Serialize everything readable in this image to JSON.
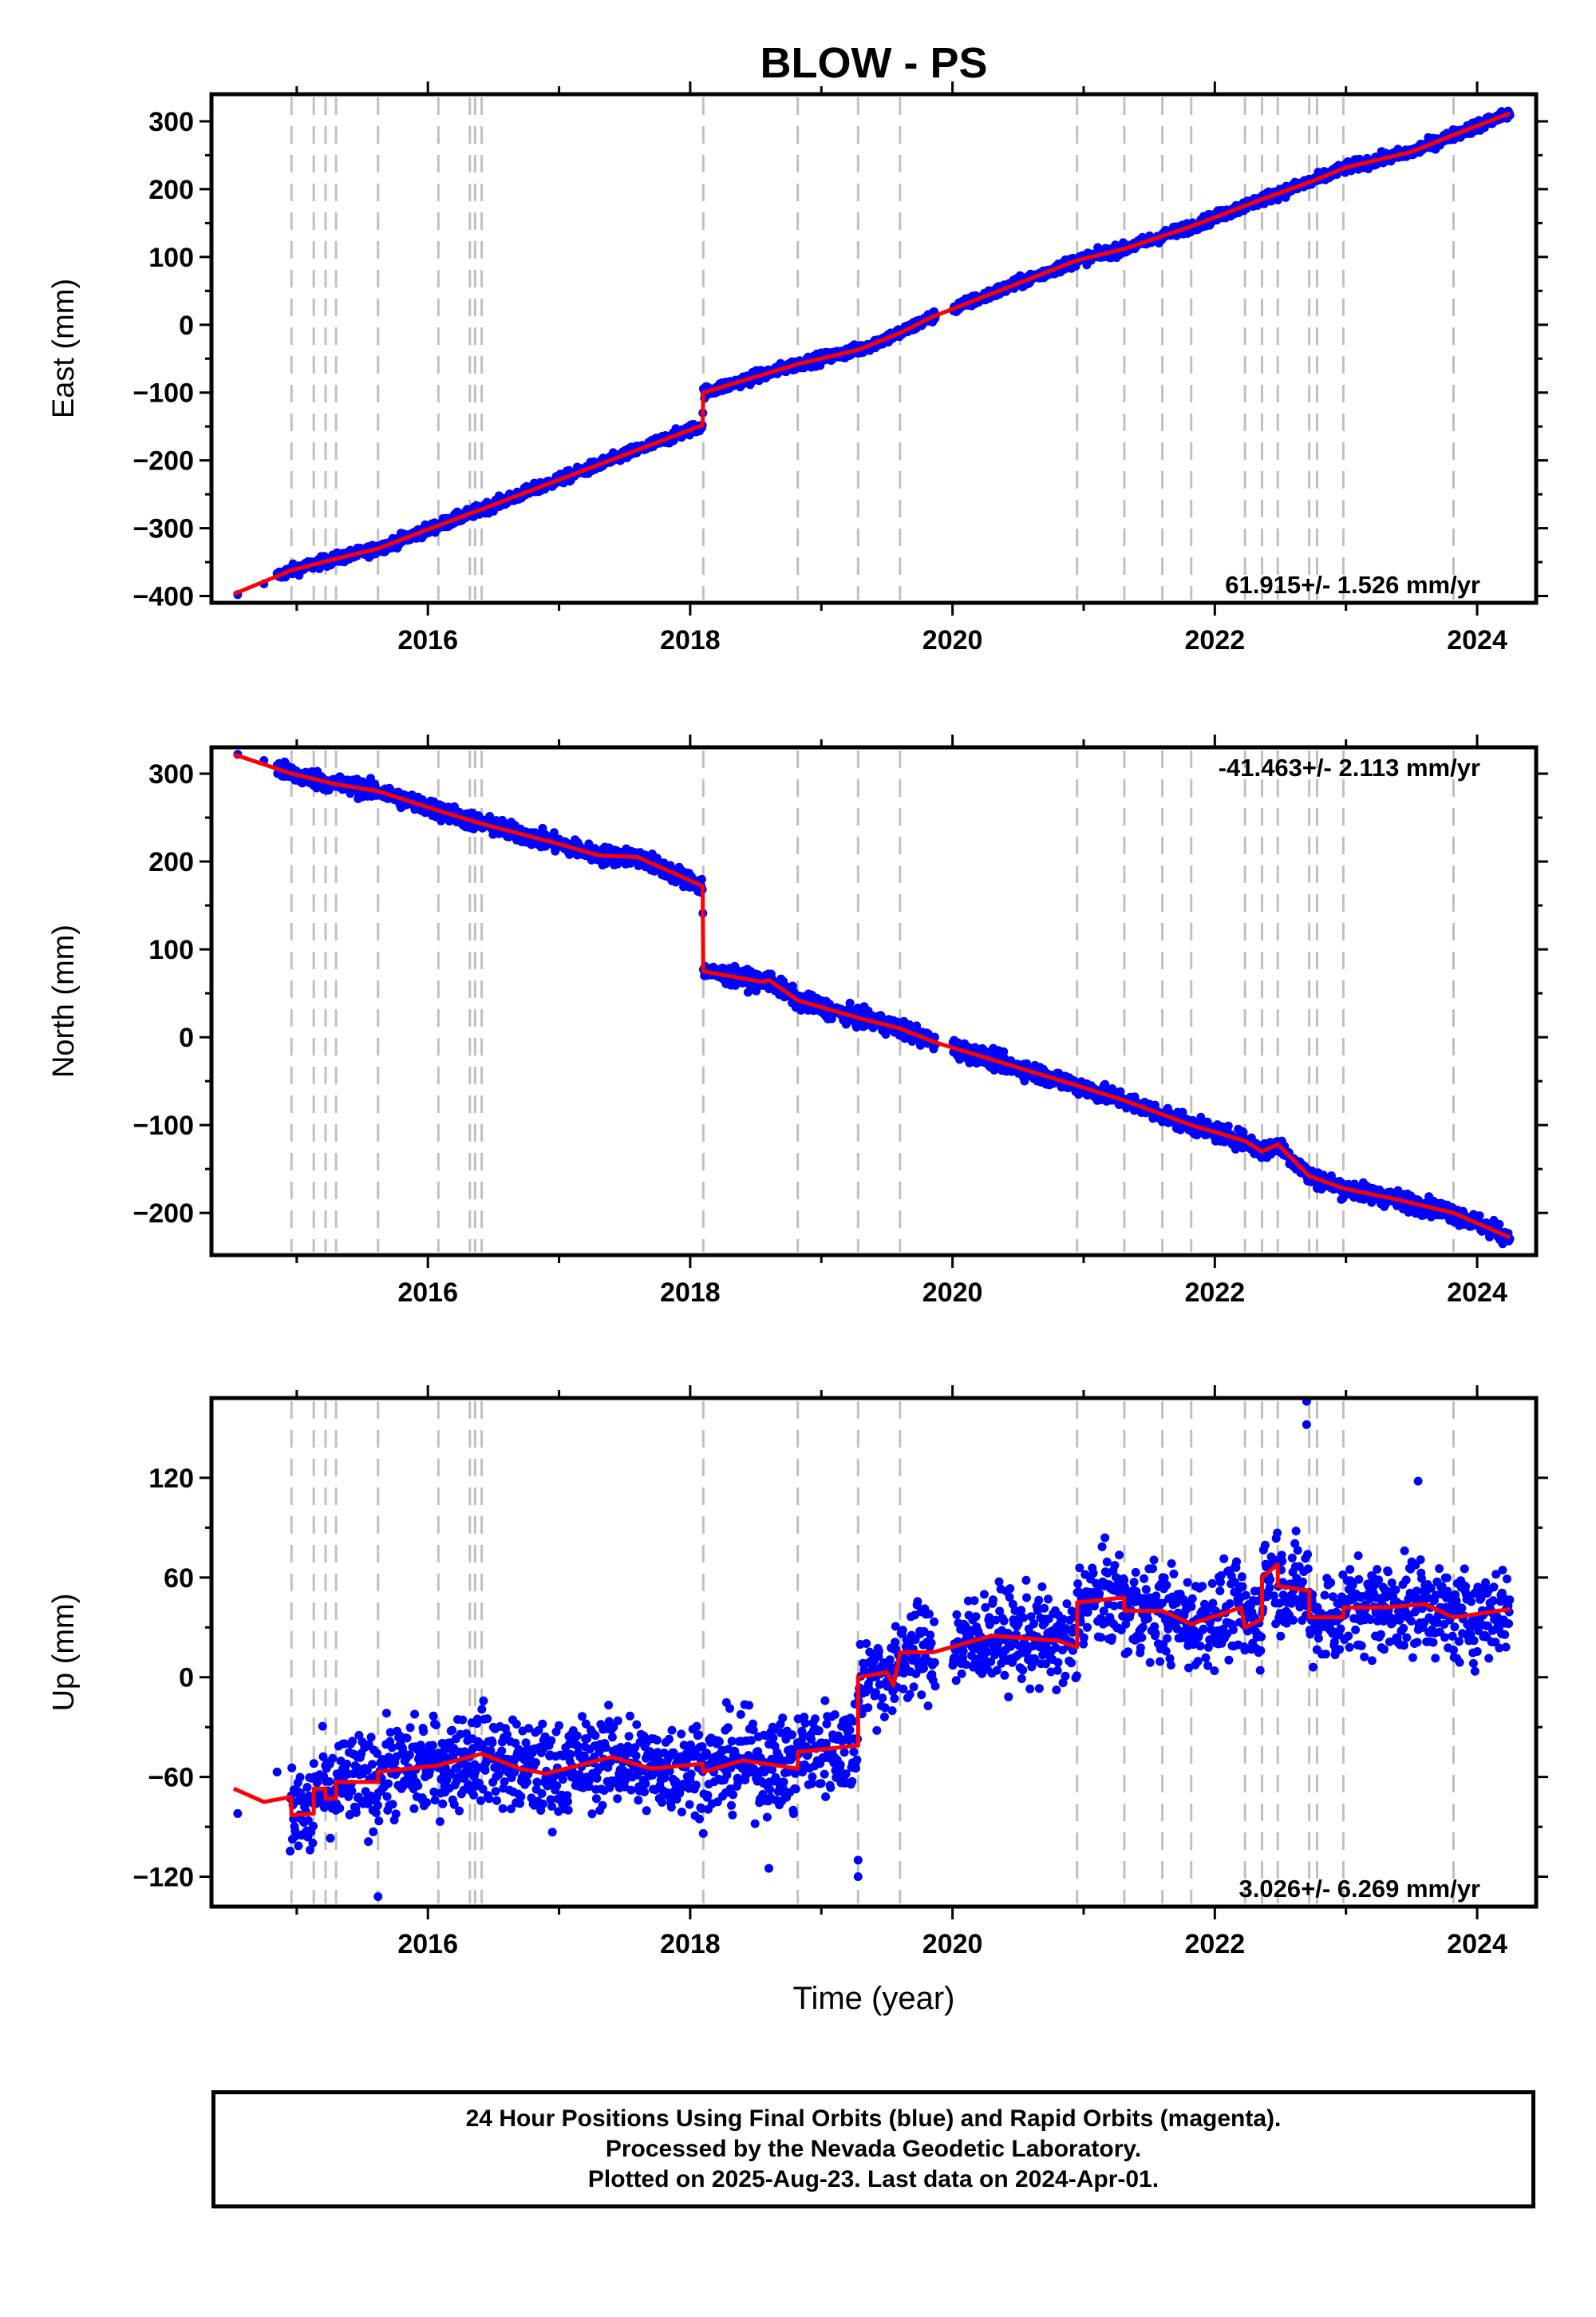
{
  "chart_data": {
    "type": "scatter",
    "title": "BLOW - PS",
    "xlabel": "Time (year)",
    "x_ticks": [
      "2016",
      "2018",
      "2020",
      "2022",
      "2024"
    ],
    "xlim": [
      2014.35,
      2024.45
    ],
    "colors": {
      "points": "#0000ff",
      "model": "#ff0000",
      "offsets": "#c0c0c0",
      "axes": "#000000"
    },
    "offset_epochs": [
      2014.96,
      2015.13,
      2015.22,
      2015.3,
      2015.62,
      2016.08,
      2016.32,
      2016.36,
      2016.41,
      2018.1,
      2018.82,
      2019.28,
      2019.6,
      2020.95,
      2021.31,
      2021.6,
      2021.82,
      2022.23,
      2022.36,
      2022.48,
      2022.72,
      2022.78,
      2022.98,
      2023.82
    ],
    "panels": [
      {
        "ylabel": "East (mm)",
        "ylim": [
          -410,
          340
        ],
        "y_ticks": [
          "300",
          "200",
          "100",
          "0",
          "−100",
          "−200",
          "−300",
          "−400"
        ],
        "y_tick_values": [
          300,
          200,
          100,
          0,
          -100,
          -200,
          -300,
          -400
        ],
        "rate": "61.915+/- 1.526 mm/yr",
        "rate_position": "bottom-right",
        "data_start": 2014.85,
        "noise": 4,
        "model": [
          [
            2014.52,
            -397
          ],
          [
            2014.96,
            -362
          ],
          [
            2015.3,
            -345
          ],
          [
            2015.62,
            -330
          ],
          [
            2016.08,
            -296
          ],
          [
            2016.41,
            -272
          ],
          [
            2018.095,
            -148
          ],
          [
            2018.1,
            -100
          ],
          [
            2018.82,
            -58
          ],
          [
            2019.28,
            -37
          ],
          [
            2019.6,
            -12
          ],
          [
            2019.85,
            12
          ],
          [
            2020.95,
            95
          ],
          [
            2021.31,
            112
          ],
          [
            2021.82,
            145
          ],
          [
            2022.36,
            185
          ],
          [
            2022.72,
            210
          ],
          [
            2023.0,
            232
          ],
          [
            2023.5,
            255
          ],
          [
            2023.82,
            280
          ],
          [
            2024.25,
            312
          ]
        ],
        "isolated_points": [
          [
            2014.55,
            -398
          ],
          [
            2014.75,
            -382
          ]
        ]
      },
      {
        "ylabel": "North (mm)",
        "ylim": [
          -248,
          330
        ],
        "y_ticks": [
          "300",
          "200",
          "100",
          "0",
          "−100",
          "−200"
        ],
        "y_tick_values": [
          300,
          200,
          100,
          0,
          -100,
          -200
        ],
        "rate": "-41.463+/- 2.113 mm/yr",
        "rate_position": "top-right",
        "data_start": 2014.85,
        "noise": 5,
        "model": [
          [
            2014.52,
            322
          ],
          [
            2014.96,
            300
          ],
          [
            2015.3,
            288
          ],
          [
            2015.62,
            280
          ],
          [
            2016.08,
            258
          ],
          [
            2016.41,
            243
          ],
          [
            2017.0,
            220
          ],
          [
            2017.3,
            207
          ],
          [
            2017.6,
            205
          ],
          [
            2018.095,
            172
          ],
          [
            2018.1,
            75
          ],
          [
            2018.55,
            63
          ],
          [
            2018.6,
            65
          ],
          [
            2018.82,
            42
          ],
          [
            2019.28,
            22
          ],
          [
            2019.6,
            10
          ],
          [
            2019.85,
            -5
          ],
          [
            2020.95,
            -55
          ],
          [
            2021.31,
            -72
          ],
          [
            2021.82,
            -100
          ],
          [
            2022.23,
            -118
          ],
          [
            2022.36,
            -130
          ],
          [
            2022.48,
            -122
          ],
          [
            2022.6,
            -140
          ],
          [
            2022.72,
            -158
          ],
          [
            2022.98,
            -172
          ],
          [
            2023.4,
            -185
          ],
          [
            2023.82,
            -200
          ],
          [
            2024.25,
            -228
          ]
        ],
        "isolated_points": [
          [
            2014.55,
            322
          ],
          [
            2014.75,
            315
          ]
        ]
      },
      {
        "ylabel": "Up (mm)",
        "ylim": [
          -138,
          168
        ],
        "y_ticks": [
          "120",
          "60",
          "0",
          "−60",
          "−120"
        ],
        "y_tick_values": [
          120,
          60,
          0,
          -60,
          -120
        ],
        "rate": "3.026+/- 6.269 mm/yr",
        "rate_position": "bottom-right",
        "data_start": 2014.95,
        "noise": 14,
        "model": [
          [
            2014.52,
            -67
          ],
          [
            2014.75,
            -75
          ],
          [
            2014.955,
            -72
          ],
          [
            2014.96,
            -83
          ],
          [
            2015.13,
            -82
          ],
          [
            2015.13,
            -67
          ],
          [
            2015.22,
            -67
          ],
          [
            2015.22,
            -73
          ],
          [
            2015.3,
            -73
          ],
          [
            2015.3,
            -63
          ],
          [
            2015.62,
            -63
          ],
          [
            2015.62,
            -57
          ],
          [
            2016.08,
            -53
          ],
          [
            2016.41,
            -46
          ],
          [
            2016.7,
            -55
          ],
          [
            2016.9,
            -58
          ],
          [
            2017.4,
            -48
          ],
          [
            2017.7,
            -55
          ],
          [
            2018.095,
            -52
          ],
          [
            2018.1,
            -57
          ],
          [
            2018.4,
            -50
          ],
          [
            2018.82,
            -55
          ],
          [
            2018.82,
            -45
          ],
          [
            2019.28,
            -41
          ],
          [
            2019.28,
            0
          ],
          [
            2019.5,
            3
          ],
          [
            2019.55,
            -5
          ],
          [
            2019.6,
            15
          ],
          [
            2019.85,
            15
          ],
          [
            2020.3,
            25
          ],
          [
            2020.8,
            22
          ],
          [
            2020.95,
            18
          ],
          [
            2020.95,
            45
          ],
          [
            2021.31,
            48
          ],
          [
            2021.31,
            40
          ],
          [
            2021.6,
            40
          ],
          [
            2021.82,
            32
          ],
          [
            2022.2,
            42
          ],
          [
            2022.23,
            30
          ],
          [
            2022.36,
            35
          ],
          [
            2022.36,
            60
          ],
          [
            2022.48,
            68
          ],
          [
            2022.48,
            55
          ],
          [
            2022.72,
            52
          ],
          [
            2022.72,
            36
          ],
          [
            2022.98,
            36
          ],
          [
            2022.98,
            42
          ],
          [
            2023.3,
            42
          ],
          [
            2023.6,
            44
          ],
          [
            2023.82,
            36
          ],
          [
            2024.25,
            41
          ]
        ],
        "isolated_points": [
          [
            2014.55,
            -82
          ],
          [
            2014.85,
            -57
          ],
          [
            2015.62,
            -132
          ],
          [
            2022.7,
            152
          ],
          [
            2022.7,
            172
          ],
          [
            2019.28,
            -110
          ],
          [
            2019.28,
            -120
          ],
          [
            2018.6,
            -115
          ],
          [
            2023.55,
            118
          ]
        ]
      }
    ]
  },
  "footer": {
    "line1": "24 Hour Positions Using Final Orbits (blue) and Rapid Orbits (magenta).",
    "line2": "Processed by the Nevada Geodetic Laboratory.",
    "line3": "Plotted on 2025-Aug-23. Last data on 2024-Apr-01."
  }
}
